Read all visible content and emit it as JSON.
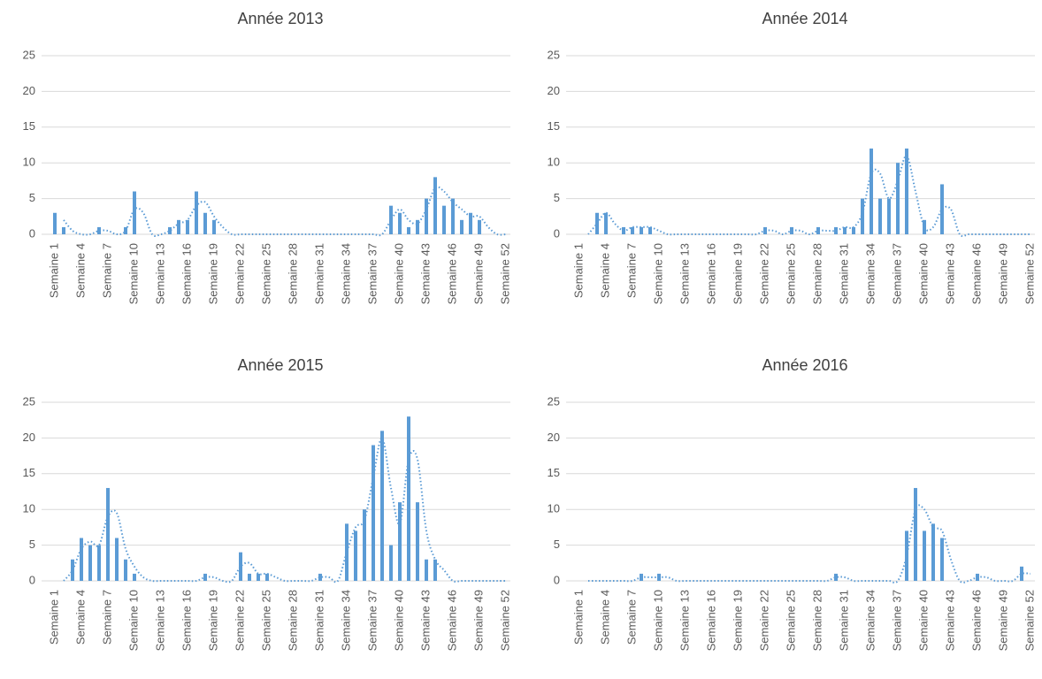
{
  "chart_data": [
    {
      "type": "bar",
      "title": "Année 2013",
      "color": "#5b9bd5",
      "grid": true,
      "moving_average_period": 2,
      "ylim": [
        0,
        25
      ],
      "yticks": [
        0,
        5,
        10,
        15,
        20,
        25
      ],
      "categories": [
        "Semaine 1",
        null,
        null,
        "Semaine 4",
        null,
        null,
        "Semaine 7",
        null,
        null,
        "Semaine 10",
        null,
        null,
        "Semaine 13",
        null,
        null,
        "Semaine 16",
        null,
        null,
        "Semaine 19",
        null,
        null,
        "Semaine 22",
        null,
        null,
        "Semaine 25",
        null,
        null,
        "Semaine 28",
        null,
        null,
        "Semaine 31",
        null,
        null,
        "Semaine 34",
        null,
        null,
        "Semaine 37",
        null,
        null,
        "Semaine 40",
        null,
        null,
        "Semaine 43",
        null,
        null,
        "Semaine 46",
        null,
        null,
        "Semaine 49",
        null,
        null,
        "Semaine 52"
      ],
      "values": [
        3,
        1,
        0,
        0,
        0,
        1,
        0,
        0,
        1,
        6,
        0,
        0,
        0,
        1,
        2,
        2,
        6,
        3,
        2,
        0,
        0,
        0,
        0,
        0,
        0,
        0,
        0,
        0,
        0,
        0,
        0,
        0,
        0,
        0,
        0,
        0,
        0,
        0,
        4,
        3,
        1,
        2,
        5,
        8,
        4,
        5,
        2,
        3,
        2,
        0,
        0,
        0
      ]
    },
    {
      "type": "bar",
      "title": "Année 2014",
      "color": "#5b9bd5",
      "grid": true,
      "moving_average_period": 2,
      "ylim": [
        0,
        25
      ],
      "yticks": [
        0,
        5,
        10,
        15,
        20,
        25
      ],
      "categories": [
        "Semaine 1",
        null,
        null,
        "Semaine 4",
        null,
        null,
        "Semaine 7",
        null,
        null,
        "Semaine 10",
        null,
        null,
        "Semaine 13",
        null,
        null,
        "Semaine 16",
        null,
        null,
        "Semaine 19",
        null,
        null,
        "Semaine 22",
        null,
        null,
        "Semaine 25",
        null,
        null,
        "Semaine 28",
        null,
        null,
        "Semaine 31",
        null,
        null,
        "Semaine 34",
        null,
        null,
        "Semaine 37",
        null,
        null,
        "Semaine 40",
        null,
        null,
        "Semaine 43",
        null,
        null,
        "Semaine 46",
        null,
        null,
        "Semaine 49",
        null,
        null,
        "Semaine 52"
      ],
      "values": [
        0,
        0,
        3,
        3,
        0,
        1,
        1,
        1,
        1,
        0,
        0,
        0,
        0,
        0,
        0,
        0,
        0,
        0,
        0,
        0,
        0,
        1,
        0,
        0,
        1,
        0,
        0,
        1,
        0,
        1,
        1,
        1,
        5,
        12,
        5,
        5,
        10,
        12,
        0,
        2,
        0,
        7,
        0,
        0,
        0,
        0,
        0,
        0,
        0,
        0,
        0,
        0
      ]
    },
    {
      "type": "bar",
      "title": "Année 2015",
      "color": "#5b9bd5",
      "grid": true,
      "moving_average_period": 2,
      "ylim": [
        0,
        25
      ],
      "yticks": [
        0,
        5,
        10,
        15,
        20,
        25
      ],
      "categories": [
        "Semaine 1",
        null,
        null,
        "Semaine 4",
        null,
        null,
        "Semaine 7",
        null,
        null,
        "Semaine 10",
        null,
        null,
        "Semaine 13",
        null,
        null,
        "Semaine 16",
        null,
        null,
        "Semaine 19",
        null,
        null,
        "Semaine 22",
        null,
        null,
        "Semaine 25",
        null,
        null,
        "Semaine 28",
        null,
        null,
        "Semaine 31",
        null,
        null,
        "Semaine 34",
        null,
        null,
        "Semaine 37",
        null,
        null,
        "Semaine 40",
        null,
        null,
        "Semaine 43",
        null,
        null,
        "Semaine 46",
        null,
        null,
        "Semaine 49",
        null,
        null,
        "Semaine 52"
      ],
      "values": [
        0,
        0,
        3,
        6,
        5,
        5,
        13,
        6,
        3,
        1,
        0,
        0,
        0,
        0,
        0,
        0,
        0,
        1,
        0,
        0,
        0,
        4,
        1,
        1,
        1,
        0,
        0,
        0,
        0,
        0,
        1,
        0,
        0,
        8,
        7,
        10,
        19,
        21,
        5,
        11,
        23,
        11,
        3,
        3,
        0,
        0,
        0,
        0,
        0,
        0,
        0,
        0
      ]
    },
    {
      "type": "bar",
      "title": "Année 2016",
      "color": "#5b9bd5",
      "grid": true,
      "moving_average_period": 2,
      "ylim": [
        0,
        25
      ],
      "yticks": [
        0,
        5,
        10,
        15,
        20,
        25
      ],
      "categories": [
        "Semaine 1",
        null,
        null,
        "Semaine 4",
        null,
        null,
        "Semaine 7",
        null,
        null,
        "Semaine 10",
        null,
        null,
        "Semaine 13",
        null,
        null,
        "Semaine 16",
        null,
        null,
        "Semaine 19",
        null,
        null,
        "Semaine 22",
        null,
        null,
        "Semaine 25",
        null,
        null,
        "Semaine 28",
        null,
        null,
        "Semaine 31",
        null,
        null,
        "Semaine 34",
        null,
        null,
        "Semaine 37",
        null,
        null,
        "Semaine 40",
        null,
        null,
        "Semaine 43",
        null,
        null,
        "Semaine 46",
        null,
        null,
        "Semaine 49",
        null,
        null,
        "Semaine 52"
      ],
      "values": [
        0,
        0,
        0,
        0,
        0,
        0,
        0,
        1,
        0,
        1,
        0,
        0,
        0,
        0,
        0,
        0,
        0,
        0,
        0,
        0,
        0,
        0,
        0,
        0,
        0,
        0,
        0,
        0,
        0,
        1,
        0,
        0,
        0,
        0,
        0,
        0,
        0,
        7,
        13,
        7,
        8,
        6,
        0,
        0,
        0,
        1,
        0,
        0,
        0,
        0,
        2,
        0
      ]
    }
  ]
}
